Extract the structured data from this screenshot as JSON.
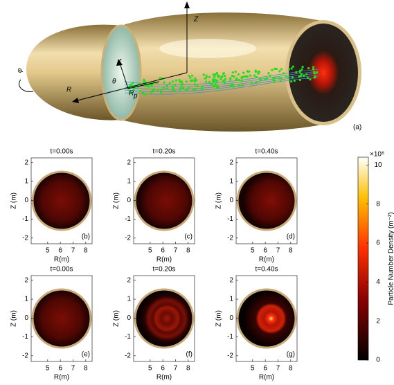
{
  "figure_a": {
    "labels": [
      "Z",
      "r",
      "θ",
      "R",
      "R",
      "p",
      "φ"
    ],
    "panel_label": "(a)"
  },
  "chart_data": [
    {
      "type": "heatmap",
      "title": "t=0.00s",
      "panel_label": "(b)",
      "xlabel": "R(m)",
      "ylabel": "Z (m)",
      "xlim": [
        3.7,
        8.5
      ],
      "ylim": [
        -2.3,
        2.25
      ],
      "xticks": [
        5,
        6,
        7,
        8
      ],
      "yticks": [
        -2,
        -1,
        0,
        1,
        2
      ]
    },
    {
      "type": "heatmap",
      "title": "t=0.20s",
      "panel_label": "(c)",
      "xlabel": "R(m)",
      "ylabel": "Z (m)",
      "xlim": [
        3.7,
        8.5
      ],
      "ylim": [
        -2.3,
        2.25
      ],
      "xticks": [
        5,
        6,
        7,
        8
      ],
      "yticks": [
        -2,
        -1,
        0,
        1,
        2
      ]
    },
    {
      "type": "heatmap",
      "title": "t=0.40s",
      "panel_label": "(d)",
      "xlabel": "R(m)",
      "ylabel": "Z (m)",
      "xlim": [
        3.7,
        8.5
      ],
      "ylim": [
        -2.3,
        2.25
      ],
      "xticks": [
        5,
        6,
        7,
        8
      ],
      "yticks": [
        -2,
        -1,
        0,
        1,
        2
      ]
    },
    {
      "type": "heatmap",
      "title": "t=0.00s",
      "panel_label": "(e)",
      "xlabel": "R(m)",
      "ylabel": "Z (m)",
      "xlim": [
        3.7,
        8.5
      ],
      "ylim": [
        -2.3,
        2.25
      ],
      "xticks": [
        5,
        6,
        7,
        8
      ],
      "yticks": [
        -2,
        -1,
        0,
        1,
        2
      ]
    },
    {
      "type": "heatmap",
      "title": "t=0.20s",
      "panel_label": "(f)",
      "xlabel": "R(m)",
      "ylabel": "Z (m)",
      "xlim": [
        3.7,
        8.5
      ],
      "ylim": [
        -2.3,
        2.25
      ],
      "xticks": [
        5,
        6,
        7,
        8
      ],
      "yticks": [
        -2,
        -1,
        0,
        1,
        2
      ]
    },
    {
      "type": "heatmap",
      "title": "t=0.40s",
      "panel_label": "(g)",
      "xlabel": "R(m)",
      "ylabel": "Z (m)",
      "xlim": [
        3.7,
        8.5
      ],
      "ylim": [
        -2.3,
        2.25
      ],
      "xticks": [
        5,
        6,
        7,
        8
      ],
      "yticks": [
        -2,
        -1,
        0,
        1,
        2
      ]
    },
    {
      "type": "colorbar",
      "ylabel": "Particle Number Density (m⁻²)",
      "multiplier": "×10⁶",
      "ylim": [
        0,
        10.4
      ],
      "yticks": [
        0,
        2,
        4,
        6,
        8,
        10
      ]
    }
  ]
}
